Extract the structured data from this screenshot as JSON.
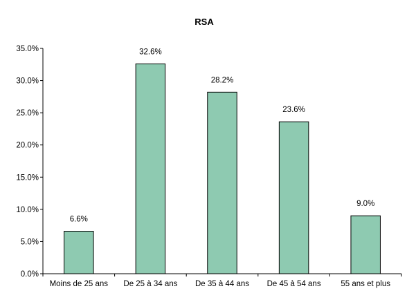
{
  "chart_data": {
    "type": "bar",
    "title": "RSA",
    "xlabel": "",
    "ylabel": "",
    "categories": [
      "Moins de 25 ans",
      "De 25 à 34 ans",
      "De 35 à 44 ans",
      "De 45 à 54 ans",
      "55 ans et plus"
    ],
    "values": [
      6.6,
      32.6,
      28.2,
      23.6,
      9.0
    ],
    "data_labels": [
      "6.6%",
      "32.6%",
      "28.2%",
      "23.6%",
      "9.0%"
    ],
    "ylim": [
      0,
      35
    ],
    "y_ticks": [
      0,
      5,
      10,
      15,
      20,
      25,
      30,
      35
    ],
    "y_tick_labels": [
      "0.0%",
      "5.0%",
      "10.0%",
      "15.0%",
      "20.0%",
      "25.0%",
      "30.0%",
      "35.0%"
    ],
    "grid": false,
    "legend": "none",
    "bar_color": "#8ecab1",
    "edge_color": "#000000"
  }
}
